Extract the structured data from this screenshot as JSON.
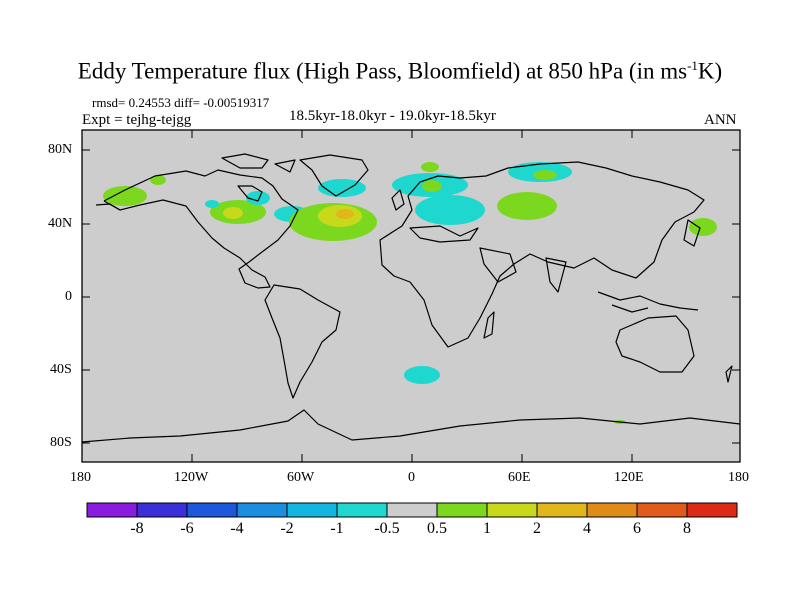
{
  "title_main": "Eddy Temperature flux (High Pass, Bloomfield) at 850 hPa (in ms",
  "title_sup": "-1",
  "title_tail": "K)",
  "rmsd_line": "rmsd= 0.24553 diff= -0.00519317",
  "expt_line": "Expt = tejhg-tejgg",
  "period_line": "18.5kyr-18.0kyr - 19.0kyr-18.5kyr",
  "season": "ANN",
  "lat_ticks": [
    "80N",
    "40N",
    "0",
    "40S",
    "80S"
  ],
  "lon_ticks": [
    "180",
    "120W",
    "60W",
    "0",
    "60E",
    "120E",
    "180"
  ],
  "colorbar": {
    "labels": [
      "-8",
      "-6",
      "-4",
      "-2",
      "-1",
      "-0.5",
      "0.5",
      "1",
      "2",
      "4",
      "6",
      "8"
    ],
    "colors": [
      "#8a1ce0",
      "#3a2fd8",
      "#1c58dc",
      "#1c8ee0",
      "#12b6e0",
      "#1ed8d0",
      "#cdcdcd",
      "#7cd81e",
      "#c8d81a",
      "#e0b61a",
      "#e08a1a",
      "#e05a1a",
      "#dc2a14"
    ]
  },
  "colors": {
    "land_ocean_fill": "#cdcdcd",
    "coastline": "#000000"
  }
}
